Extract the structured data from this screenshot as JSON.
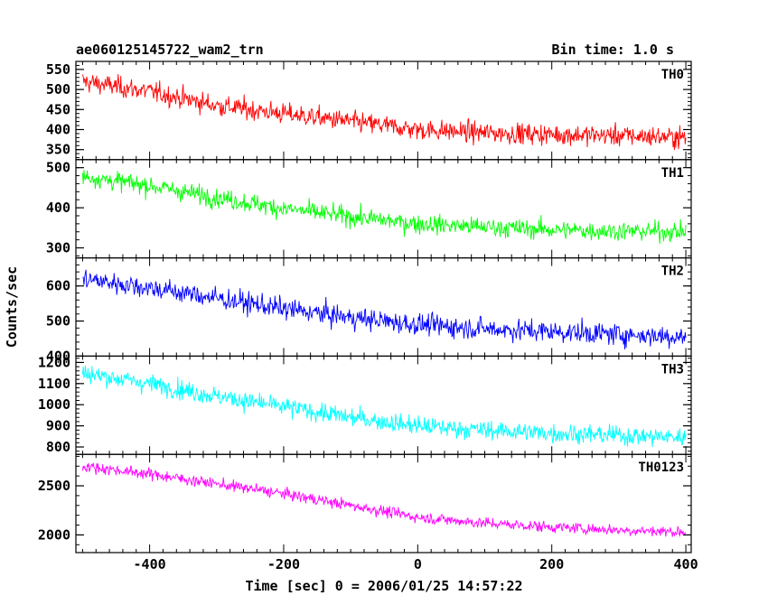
{
  "header": {
    "title": "ae060125145722_wam2_trn",
    "bin_time": "Bin time: 1.0 s"
  },
  "chart_data": {
    "type": "line",
    "xlabel": "Time [sec] 0 = 2006/01/25 14:57:22",
    "ylabel": "Counts/sec",
    "xlim": [
      -510,
      408
    ],
    "xticks": [
      -400,
      -200,
      0,
      200,
      400
    ],
    "x_range": [
      -500,
      400
    ],
    "bin_time_s": 1.0,
    "panels": [
      {
        "name": "TH0",
        "color": "#ff0000",
        "ylim": [
          325,
          570
        ],
        "yticks": [
          350,
          400,
          450,
          500,
          550
        ],
        "trend": [
          {
            "x": -500,
            "y": 520
          },
          {
            "x": -400,
            "y": 495
          },
          {
            "x": -300,
            "y": 460
          },
          {
            "x": -200,
            "y": 440
          },
          {
            "x": -100,
            "y": 420
          },
          {
            "x": 0,
            "y": 400
          },
          {
            "x": 100,
            "y": 392
          },
          {
            "x": 200,
            "y": 388
          },
          {
            "x": 300,
            "y": 385
          },
          {
            "x": 400,
            "y": 380
          }
        ],
        "noise": 22
      },
      {
        "name": "TH1",
        "color": "#00ff00",
        "ylim": [
          275,
          520
        ],
        "yticks": [
          300,
          400,
          500
        ],
        "trend": [
          {
            "x": -500,
            "y": 478
          },
          {
            "x": -400,
            "y": 455
          },
          {
            "x": -300,
            "y": 425
          },
          {
            "x": -200,
            "y": 398
          },
          {
            "x": -100,
            "y": 378
          },
          {
            "x": 0,
            "y": 360
          },
          {
            "x": 100,
            "y": 352
          },
          {
            "x": 200,
            "y": 345
          },
          {
            "x": 300,
            "y": 342
          },
          {
            "x": 400,
            "y": 340
          }
        ],
        "noise": 20
      },
      {
        "name": "TH2",
        "color": "#0000ff",
        "ylim": [
          400,
          680
        ],
        "yticks": [
          400,
          500,
          600
        ],
        "trend": [
          {
            "x": -500,
            "y": 620
          },
          {
            "x": -400,
            "y": 595
          },
          {
            "x": -300,
            "y": 565
          },
          {
            "x": -200,
            "y": 535
          },
          {
            "x": -100,
            "y": 510
          },
          {
            "x": 0,
            "y": 490
          },
          {
            "x": 100,
            "y": 478
          },
          {
            "x": 200,
            "y": 470
          },
          {
            "x": 300,
            "y": 462
          },
          {
            "x": 400,
            "y": 455
          }
        ],
        "noise": 26
      },
      {
        "name": "TH3",
        "color": "#00ffff",
        "ylim": [
          765,
          1230
        ],
        "yticks": [
          800,
          900,
          1000,
          1100,
          1200
        ],
        "trend": [
          {
            "x": -500,
            "y": 1150
          },
          {
            "x": -400,
            "y": 1100
          },
          {
            "x": -300,
            "y": 1040
          },
          {
            "x": -200,
            "y": 990
          },
          {
            "x": -100,
            "y": 940
          },
          {
            "x": 0,
            "y": 900
          },
          {
            "x": 100,
            "y": 880
          },
          {
            "x": 200,
            "y": 865
          },
          {
            "x": 300,
            "y": 855
          },
          {
            "x": 400,
            "y": 845
          }
        ],
        "noise": 38
      },
      {
        "name": "TH0123",
        "color": "#ff00ff",
        "ylim": [
          1820,
          2820
        ],
        "yticks": [
          2000,
          2500
        ],
        "trend": [
          {
            "x": -500,
            "y": 2700
          },
          {
            "x": -400,
            "y": 2620
          },
          {
            "x": -300,
            "y": 2520
          },
          {
            "x": -200,
            "y": 2420
          },
          {
            "x": -100,
            "y": 2300
          },
          {
            "x": 0,
            "y": 2180
          },
          {
            "x": 100,
            "y": 2120
          },
          {
            "x": 200,
            "y": 2080
          },
          {
            "x": 300,
            "y": 2050
          },
          {
            "x": 400,
            "y": 2030
          }
        ],
        "noise": 48
      }
    ]
  }
}
